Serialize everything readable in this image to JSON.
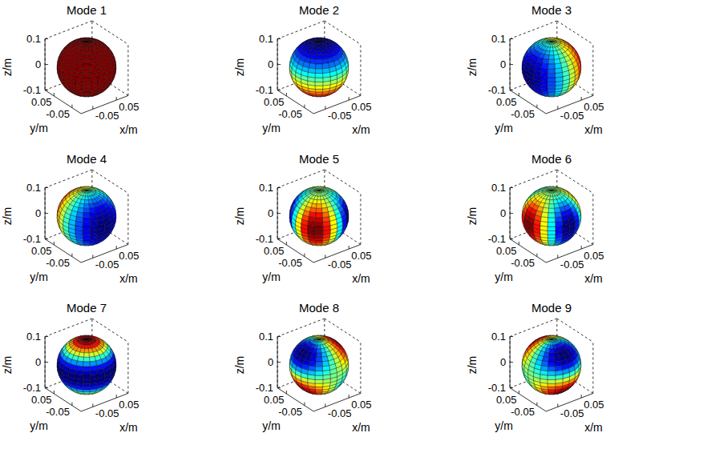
{
  "chart_data": [
    {
      "type": "sphere",
      "title": "Mode 1",
      "x_label": "x/m",
      "y_label": "y/m",
      "z_label": "z/m",
      "xlim": [
        -0.1,
        0.1
      ],
      "xticks": [
        -0.05,
        0.05
      ],
      "ylim": [
        -0.1,
        0.1
      ],
      "yticks": [
        -0.05,
        0.05
      ],
      "zlim": [
        -0.1,
        0.1
      ],
      "zticks": [
        -0.1,
        0,
        0.1
      ]
    },
    {
      "type": "sphere",
      "title": "Mode 2",
      "x_label": "x/m",
      "y_label": "y/m",
      "z_label": "z/m",
      "xlim": [
        -0.1,
        0.1
      ],
      "xticks": [
        -0.05,
        0.05
      ],
      "ylim": [
        -0.1,
        0.1
      ],
      "yticks": [
        -0.05,
        0.05
      ],
      "zlim": [
        -0.1,
        0.1
      ],
      "zticks": [
        -0.1,
        0,
        0.1
      ]
    },
    {
      "type": "sphere",
      "title": "Mode 3",
      "x_label": "x/m",
      "y_label": "y/m",
      "z_label": "z/m",
      "xlim": [
        -0.1,
        0.1
      ],
      "xticks": [
        -0.05,
        0.05
      ],
      "ylim": [
        -0.1,
        0.1
      ],
      "yticks": [
        -0.05,
        0.05
      ],
      "zlim": [
        -0.1,
        0.1
      ],
      "zticks": [
        -0.1,
        0,
        0.1
      ]
    },
    {
      "type": "sphere",
      "title": "Mode 4",
      "x_label": "x/m",
      "y_label": "y/m",
      "z_label": "z/m",
      "xlim": [
        -0.1,
        0.1
      ],
      "xticks": [
        -0.05,
        0.05
      ],
      "ylim": [
        -0.1,
        0.1
      ],
      "yticks": [
        -0.05,
        0.05
      ],
      "zlim": [
        -0.1,
        0.1
      ],
      "zticks": [
        -0.1,
        0,
        0.1
      ]
    },
    {
      "type": "sphere",
      "title": "Mode 5",
      "x_label": "x/m",
      "y_label": "y/m",
      "z_label": "z/m",
      "xlim": [
        -0.1,
        0.1
      ],
      "xticks": [
        -0.05,
        0.05
      ],
      "ylim": [
        -0.1,
        0.1
      ],
      "yticks": [
        -0.05,
        0.05
      ],
      "zlim": [
        -0.1,
        0.1
      ],
      "zticks": [
        -0.1,
        0,
        0.1
      ]
    },
    {
      "type": "sphere",
      "title": "Mode 6",
      "x_label": "x/m",
      "y_label": "y/m",
      "z_label": "z/m",
      "xlim": [
        -0.1,
        0.1
      ],
      "xticks": [
        -0.05,
        0.05
      ],
      "ylim": [
        -0.1,
        0.1
      ],
      "yticks": [
        -0.05,
        0.05
      ],
      "zlim": [
        -0.1,
        0.1
      ],
      "zticks": [
        -0.1,
        0,
        0.1
      ]
    },
    {
      "type": "sphere",
      "title": "Mode 7",
      "x_label": "x/m",
      "y_label": "y/m",
      "z_label": "z/m",
      "xlim": [
        -0.1,
        0.1
      ],
      "xticks": [
        -0.05,
        0.05
      ],
      "ylim": [
        -0.1,
        0.1
      ],
      "yticks": [
        -0.05,
        0.05
      ],
      "zlim": [
        -0.1,
        0.1
      ],
      "zticks": [
        -0.1,
        0,
        0.1
      ]
    },
    {
      "type": "sphere",
      "title": "Mode 8",
      "x_label": "x/m",
      "y_label": "y/m",
      "z_label": "z/m",
      "xlim": [
        -0.1,
        0.1
      ],
      "xticks": [
        -0.05,
        0.05
      ],
      "ylim": [
        -0.1,
        0.1
      ],
      "yticks": [
        -0.05,
        0.05
      ],
      "zlim": [
        -0.1,
        0.1
      ],
      "zticks": [
        -0.1,
        0,
        0.1
      ]
    },
    {
      "type": "sphere",
      "title": "Mode 9",
      "x_label": "x/m",
      "y_label": "y/m",
      "z_label": "z/m",
      "xlim": [
        -0.1,
        0.1
      ],
      "xticks": [
        -0.05,
        0.05
      ],
      "ylim": [
        -0.1,
        0.1
      ],
      "yticks": [
        -0.05,
        0.05
      ],
      "zlim": [
        -0.1,
        0.1
      ],
      "zticks": [
        -0.1,
        0,
        0.1
      ]
    }
  ]
}
